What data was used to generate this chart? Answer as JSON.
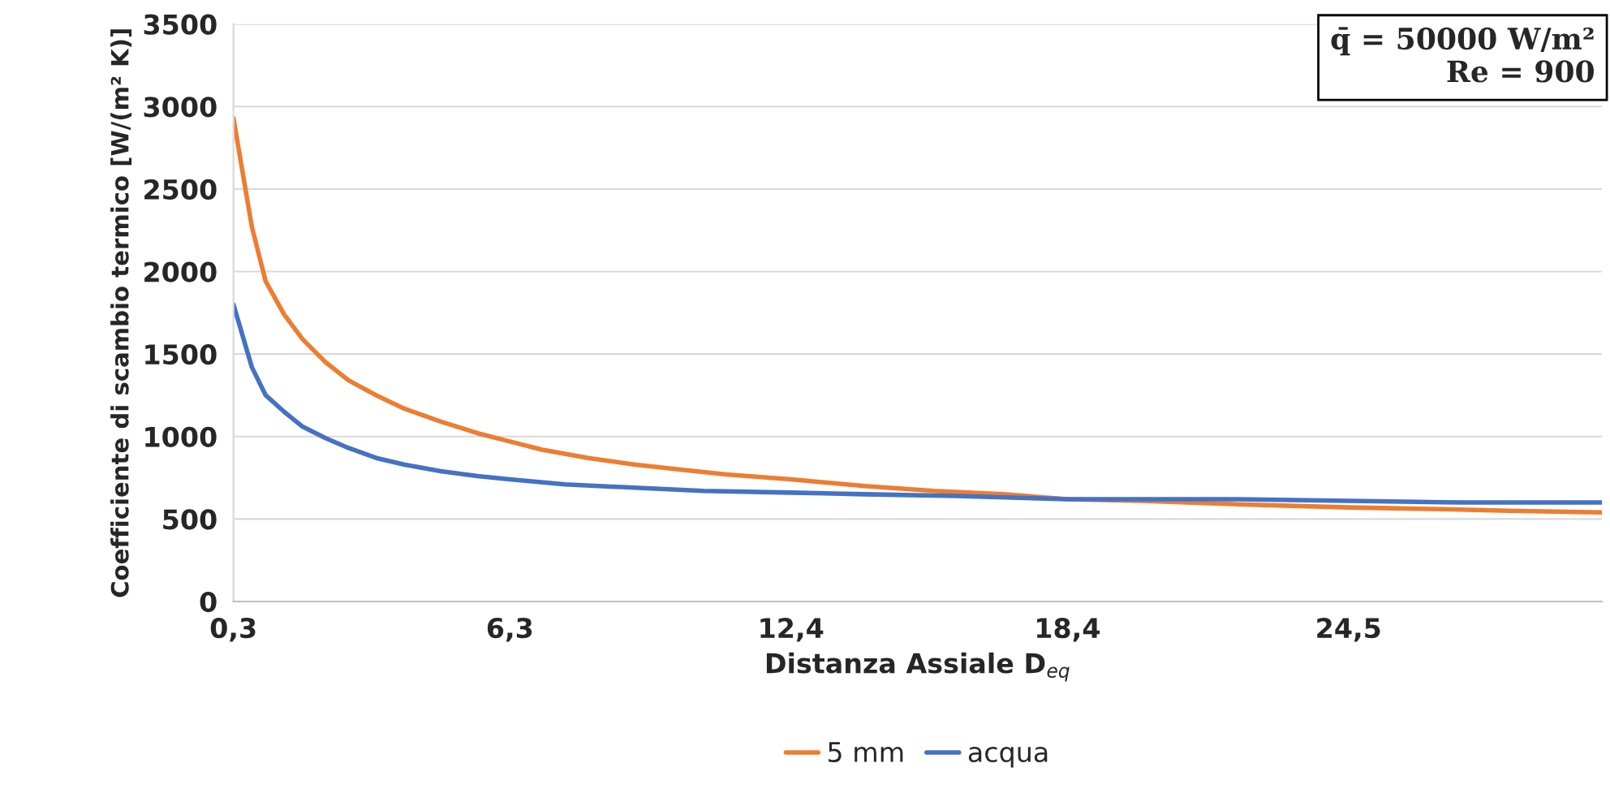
{
  "chart_data": {
    "type": "line",
    "xlabel": "Distanza Assiale D$_{eq}$",
    "ylabel": "Coefficiente di scambio termico [W/(m² K)]",
    "xlim": [
      0.3,
      30
    ],
    "xticks": [
      {
        "value": 0.3,
        "label": "0,3"
      },
      {
        "value": 6.3,
        "label": "6,3"
      },
      {
        "value": 12.4,
        "label": "12,4"
      },
      {
        "value": 18.4,
        "label": "18,4"
      },
      {
        "value": 24.5,
        "label": "24,5"
      }
    ],
    "ylim": [
      0,
      3500
    ],
    "yticks": [
      0,
      500,
      1000,
      1500,
      2000,
      2500,
      3000,
      3500
    ],
    "grid": "y",
    "legend": "bottom",
    "marker": "none",
    "line_style": "solid",
    "annotations": [
      "q̄ = 50000 W/m²\nRe = 900"
    ],
    "series": [
      {
        "name": "5 mm",
        "color": "#ed7d31",
        "x": [
          0.3,
          0.7,
          1.0,
          1.4,
          1.8,
          2.3,
          2.8,
          3.4,
          4.0,
          4.8,
          5.6,
          6.3,
          7.0,
          8.0,
          9.0,
          10.0,
          11.0,
          12.4,
          14.0,
          15.5,
          17.0,
          18.4,
          20.0,
          22.0,
          24.5,
          26.5,
          28.0,
          30.0
        ],
        "values": [
          2930,
          2270,
          1940,
          1740,
          1590,
          1450,
          1340,
          1250,
          1170,
          1090,
          1020,
          970,
          920,
          870,
          830,
          800,
          770,
          740,
          700,
          670,
          650,
          620,
          610,
          590,
          570,
          560,
          550,
          540
        ]
      },
      {
        "name": "acqua",
        "color": "#4472c4",
        "x": [
          0.3,
          0.7,
          1.0,
          1.4,
          1.8,
          2.3,
          2.8,
          3.4,
          4.0,
          4.8,
          5.6,
          6.3,
          7.5,
          9.0,
          10.5,
          12.4,
          14.0,
          16.0,
          18.4,
          20.0,
          22.0,
          24.5,
          27.0,
          30.0
        ],
        "values": [
          1800,
          1420,
          1250,
          1150,
          1060,
          990,
          930,
          870,
          830,
          790,
          760,
          740,
          710,
          690,
          670,
          660,
          650,
          640,
          620,
          620,
          620,
          610,
          600,
          600
        ]
      }
    ]
  }
}
